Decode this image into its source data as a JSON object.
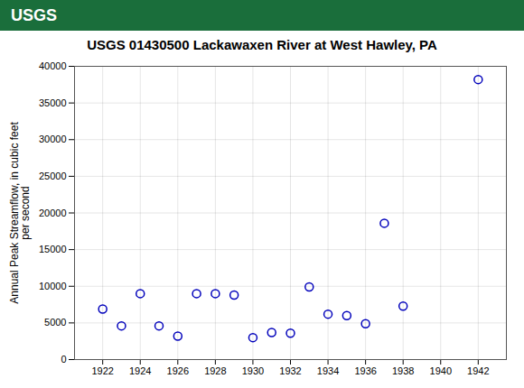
{
  "chart_data": {
    "type": "scatter",
    "title": "USGS 01430500 Lackawaxen River at West Hawley, PA",
    "annotations": [
      "USGS"
    ],
    "ylabel": "Annual Peak Streamflow, in cubic feet\nper second",
    "x": [
      1922,
      1923,
      1924,
      1925,
      1926,
      1927,
      1928,
      1929,
      1930,
      1931,
      1932,
      1933,
      1934,
      1935,
      1936,
      1937,
      1938,
      1942
    ],
    "values": [
      6900,
      4600,
      9000,
      4600,
      3200,
      9000,
      9000,
      8800,
      3000,
      3700,
      3600,
      9900,
      6200,
      6000,
      4900,
      18600,
      7300,
      38200
    ],
    "color": "#0000bb",
    "marker": "circle",
    "xlim": [
      1920.5,
      1943.5
    ],
    "ylim": [
      0,
      40000
    ],
    "xticks": [
      1922,
      1924,
      1926,
      1928,
      1930,
      1932,
      1934,
      1936,
      1938,
      1940,
      1942
    ],
    "yticks": [
      0,
      5000,
      10000,
      15000,
      20000,
      25000,
      30000,
      35000,
      40000
    ],
    "grid": true
  }
}
